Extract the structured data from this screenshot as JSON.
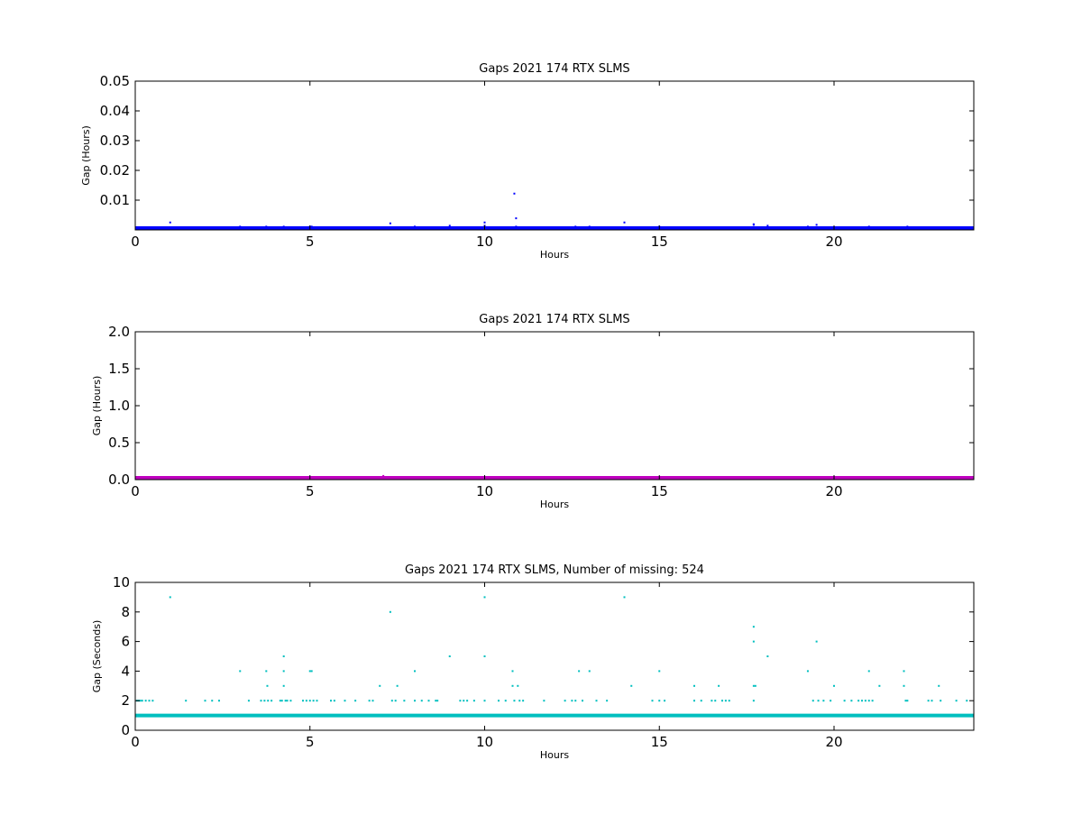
{
  "chart_data": [
    {
      "type": "scatter",
      "title": "Gaps 2021 174 RTX  SLMS",
      "xlabel": "Hours",
      "ylabel": "Gap (Hours)",
      "xlim": [
        0,
        24
      ],
      "ylim": [
        0,
        0.05
      ],
      "xticks": [
        0,
        5,
        10,
        15,
        20
      ],
      "yticks": [
        0.01,
        0.02,
        0.03,
        0.04,
        0.05
      ],
      "ytick_labels": [
        "0.01",
        "0.02",
        "0.03",
        "0.04",
        "0.05"
      ],
      "color": "#0000ff",
      "baseline": {
        "value": 0.000278,
        "x_range": [
          0,
          24
        ]
      },
      "points": [
        {
          "x": 1.0,
          "y": 0.0025
        },
        {
          "x": 3.0,
          "y": 0.0011
        },
        {
          "x": 3.75,
          "y": 0.0011
        },
        {
          "x": 3.8,
          "y": 0.0008
        },
        {
          "x": 4.25,
          "y": 0.0011
        },
        {
          "x": 5.0,
          "y": 0.0011
        },
        {
          "x": 5.05,
          "y": 0.0011
        },
        {
          "x": 7.0,
          "y": 0.0008
        },
        {
          "x": 7.3,
          "y": 0.0022
        },
        {
          "x": 7.5,
          "y": 0.0008
        },
        {
          "x": 8.0,
          "y": 0.0011
        },
        {
          "x": 9.0,
          "y": 0.0014
        },
        {
          "x": 10.0,
          "y": 0.0025
        },
        {
          "x": 10.0,
          "y": 0.0014
        },
        {
          "x": 10.85,
          "y": 0.0122
        },
        {
          "x": 10.9,
          "y": 0.0039
        },
        {
          "x": 10.9,
          "y": 0.0011
        },
        {
          "x": 11.0,
          "y": 0.0008
        },
        {
          "x": 12.6,
          "y": 0.0011
        },
        {
          "x": 13.0,
          "y": 0.0011
        },
        {
          "x": 14.0,
          "y": 0.0025
        },
        {
          "x": 14.2,
          "y": 0.0008
        },
        {
          "x": 15.0,
          "y": 0.0011
        },
        {
          "x": 16.0,
          "y": 0.0008
        },
        {
          "x": 16.7,
          "y": 0.0008
        },
        {
          "x": 17.7,
          "y": 0.0019
        },
        {
          "x": 17.7,
          "y": 0.0017
        },
        {
          "x": 18.1,
          "y": 0.0014
        },
        {
          "x": 19.25,
          "y": 0.0011
        },
        {
          "x": 19.5,
          "y": 0.0017
        },
        {
          "x": 20.0,
          "y": 0.0008
        },
        {
          "x": 21.0,
          "y": 0.0011
        },
        {
          "x": 21.3,
          "y": 0.0008
        },
        {
          "x": 22.1,
          "y": 0.0011
        },
        {
          "x": 23.0,
          "y": 0.0008
        }
      ]
    },
    {
      "type": "scatter",
      "title": "Gaps 2021 174 RTX  SLMS",
      "xlabel": "Hours",
      "ylabel": "Gap (Hours)",
      "xlim": [
        0,
        24
      ],
      "ylim": [
        0,
        2.0
      ],
      "xticks": [
        0,
        5,
        10,
        15,
        20
      ],
      "yticks": [
        0.0,
        0.5,
        1.0,
        1.5,
        2.0
      ],
      "ytick_labels": [
        "0.0",
        "0.5",
        "1.0",
        "1.5",
        "2.0"
      ],
      "color": "#bf00bf",
      "baseline": {
        "value": 0.0003,
        "x_range": [
          0,
          24
        ]
      },
      "points": [
        {
          "x": 7.1,
          "y": 0.05
        }
      ]
    },
    {
      "type": "scatter",
      "title": "Gaps 2021 174 RTX  SLMS, Number of missing: 524",
      "xlabel": "Hours",
      "ylabel": "Gap (Seconds)",
      "xlim": [
        0,
        24
      ],
      "ylim": [
        0,
        10
      ],
      "xticks": [
        0,
        5,
        10,
        15,
        20
      ],
      "yticks": [
        0,
        2,
        4,
        6,
        8,
        10
      ],
      "ytick_labels": [
        "0",
        "2",
        "4",
        "6",
        "8",
        "10"
      ],
      "color": "#00bfbf",
      "baseline": {
        "value": 1,
        "x_range": [
          0,
          24
        ]
      },
      "points": [
        {
          "x": 0.05,
          "y": 2
        },
        {
          "x": 0.1,
          "y": 2
        },
        {
          "x": 0.15,
          "y": 2
        },
        {
          "x": 0.2,
          "y": 2
        },
        {
          "x": 0.3,
          "y": 2
        },
        {
          "x": 0.4,
          "y": 2
        },
        {
          "x": 0.5,
          "y": 2
        },
        {
          "x": 1.0,
          "y": 9
        },
        {
          "x": 1.45,
          "y": 2
        },
        {
          "x": 2.0,
          "y": 2
        },
        {
          "x": 2.2,
          "y": 2
        },
        {
          "x": 2.4,
          "y": 2
        },
        {
          "x": 3.0,
          "y": 4
        },
        {
          "x": 3.25,
          "y": 2
        },
        {
          "x": 3.6,
          "y": 2
        },
        {
          "x": 3.7,
          "y": 2
        },
        {
          "x": 3.75,
          "y": 4
        },
        {
          "x": 3.78,
          "y": 3
        },
        {
          "x": 3.8,
          "y": 2
        },
        {
          "x": 3.9,
          "y": 2
        },
        {
          "x": 4.15,
          "y": 2
        },
        {
          "x": 4.2,
          "y": 2
        },
        {
          "x": 4.25,
          "y": 5
        },
        {
          "x": 4.25,
          "y": 4
        },
        {
          "x": 4.25,
          "y": 3
        },
        {
          "x": 4.3,
          "y": 2
        },
        {
          "x": 4.35,
          "y": 2
        },
        {
          "x": 4.45,
          "y": 2
        },
        {
          "x": 4.8,
          "y": 2
        },
        {
          "x": 4.9,
          "y": 2
        },
        {
          "x": 5.0,
          "y": 2
        },
        {
          "x": 5.0,
          "y": 4
        },
        {
          "x": 5.05,
          "y": 4
        },
        {
          "x": 5.1,
          "y": 2
        },
        {
          "x": 5.2,
          "y": 2
        },
        {
          "x": 5.6,
          "y": 2
        },
        {
          "x": 5.7,
          "y": 2
        },
        {
          "x": 6.0,
          "y": 2
        },
        {
          "x": 6.3,
          "y": 2
        },
        {
          "x": 6.7,
          "y": 2
        },
        {
          "x": 6.8,
          "y": 2
        },
        {
          "x": 7.0,
          "y": 3
        },
        {
          "x": 7.1,
          "y": 1
        },
        {
          "x": 7.3,
          "y": 8
        },
        {
          "x": 7.35,
          "y": 2
        },
        {
          "x": 7.45,
          "y": 2
        },
        {
          "x": 7.5,
          "y": 3
        },
        {
          "x": 7.7,
          "y": 2
        },
        {
          "x": 8.0,
          "y": 4
        },
        {
          "x": 8.0,
          "y": 2
        },
        {
          "x": 8.2,
          "y": 2
        },
        {
          "x": 8.4,
          "y": 2
        },
        {
          "x": 8.6,
          "y": 2
        },
        {
          "x": 8.65,
          "y": 2
        },
        {
          "x": 9.0,
          "y": 5
        },
        {
          "x": 9.3,
          "y": 2
        },
        {
          "x": 9.4,
          "y": 2
        },
        {
          "x": 9.5,
          "y": 2
        },
        {
          "x": 9.7,
          "y": 2
        },
        {
          "x": 10.0,
          "y": 9
        },
        {
          "x": 10.0,
          "y": 5
        },
        {
          "x": 10.0,
          "y": 2
        },
        {
          "x": 10.4,
          "y": 2
        },
        {
          "x": 10.6,
          "y": 2
        },
        {
          "x": 10.8,
          "y": 4
        },
        {
          "x": 10.8,
          "y": 3
        },
        {
          "x": 10.85,
          "y": 2
        },
        {
          "x": 10.95,
          "y": 3
        },
        {
          "x": 11.0,
          "y": 2
        },
        {
          "x": 11.1,
          "y": 2
        },
        {
          "x": 11.7,
          "y": 2
        },
        {
          "x": 12.3,
          "y": 2
        },
        {
          "x": 12.5,
          "y": 2
        },
        {
          "x": 12.6,
          "y": 2
        },
        {
          "x": 12.7,
          "y": 4
        },
        {
          "x": 12.8,
          "y": 2
        },
        {
          "x": 13.0,
          "y": 4
        },
        {
          "x": 13.2,
          "y": 2
        },
        {
          "x": 13.5,
          "y": 2
        },
        {
          "x": 14.0,
          "y": 9
        },
        {
          "x": 14.2,
          "y": 3
        },
        {
          "x": 14.8,
          "y": 2
        },
        {
          "x": 15.0,
          "y": 4
        },
        {
          "x": 15.0,
          "y": 2
        },
        {
          "x": 15.15,
          "y": 2
        },
        {
          "x": 16.0,
          "y": 3
        },
        {
          "x": 16.0,
          "y": 2
        },
        {
          "x": 16.2,
          "y": 2
        },
        {
          "x": 16.5,
          "y": 2
        },
        {
          "x": 16.6,
          "y": 2
        },
        {
          "x": 16.7,
          "y": 3
        },
        {
          "x": 16.8,
          "y": 2
        },
        {
          "x": 16.9,
          "y": 2
        },
        {
          "x": 17.0,
          "y": 2
        },
        {
          "x": 17.7,
          "y": 7
        },
        {
          "x": 17.7,
          "y": 6
        },
        {
          "x": 17.7,
          "y": 3
        },
        {
          "x": 17.75,
          "y": 3
        },
        {
          "x": 17.7,
          "y": 2
        },
        {
          "x": 18.1,
          "y": 5
        },
        {
          "x": 19.25,
          "y": 4
        },
        {
          "x": 19.4,
          "y": 2
        },
        {
          "x": 19.5,
          "y": 6
        },
        {
          "x": 19.55,
          "y": 2
        },
        {
          "x": 19.7,
          "y": 2
        },
        {
          "x": 19.9,
          "y": 2
        },
        {
          "x": 20.0,
          "y": 3
        },
        {
          "x": 20.3,
          "y": 2
        },
        {
          "x": 20.5,
          "y": 2
        },
        {
          "x": 20.7,
          "y": 2
        },
        {
          "x": 20.8,
          "y": 2
        },
        {
          "x": 20.9,
          "y": 2
        },
        {
          "x": 21.0,
          "y": 4
        },
        {
          "x": 21.0,
          "y": 2
        },
        {
          "x": 21.1,
          "y": 2
        },
        {
          "x": 21.3,
          "y": 3
        },
        {
          "x": 22.0,
          "y": 4
        },
        {
          "x": 22.0,
          "y": 3
        },
        {
          "x": 22.05,
          "y": 2
        },
        {
          "x": 22.1,
          "y": 2
        },
        {
          "x": 22.7,
          "y": 2
        },
        {
          "x": 22.8,
          "y": 2
        },
        {
          "x": 23.0,
          "y": 3
        },
        {
          "x": 23.05,
          "y": 2
        },
        {
          "x": 23.5,
          "y": 2
        },
        {
          "x": 23.8,
          "y": 2
        }
      ]
    }
  ]
}
